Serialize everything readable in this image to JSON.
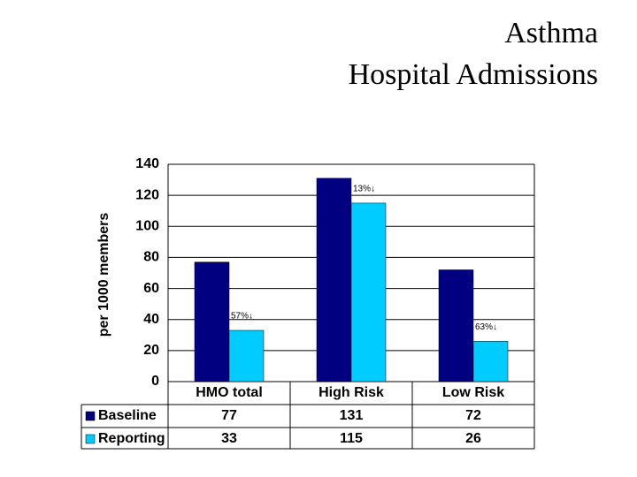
{
  "chart_data": {
    "type": "bar",
    "title": "Asthma",
    "subtitle": "Hospital Admissions",
    "y_label": "per 1000 members",
    "categories": [
      "HMO total",
      "High Risk",
      "Low Risk"
    ],
    "series": [
      {
        "name": "Baseline",
        "color": "#000080",
        "values": [
          77,
          131,
          72
        ]
      },
      {
        "name": "Reporting",
        "color": "#00ccff",
        "values": [
          33,
          115,
          26
        ]
      }
    ],
    "annotations": [
      "57%↓",
      "13%↓",
      "63%↓"
    ],
    "ylim": [
      0,
      140
    ],
    "yticks": [
      0,
      20,
      40,
      60,
      80,
      100,
      120,
      140
    ],
    "grid": true
  }
}
